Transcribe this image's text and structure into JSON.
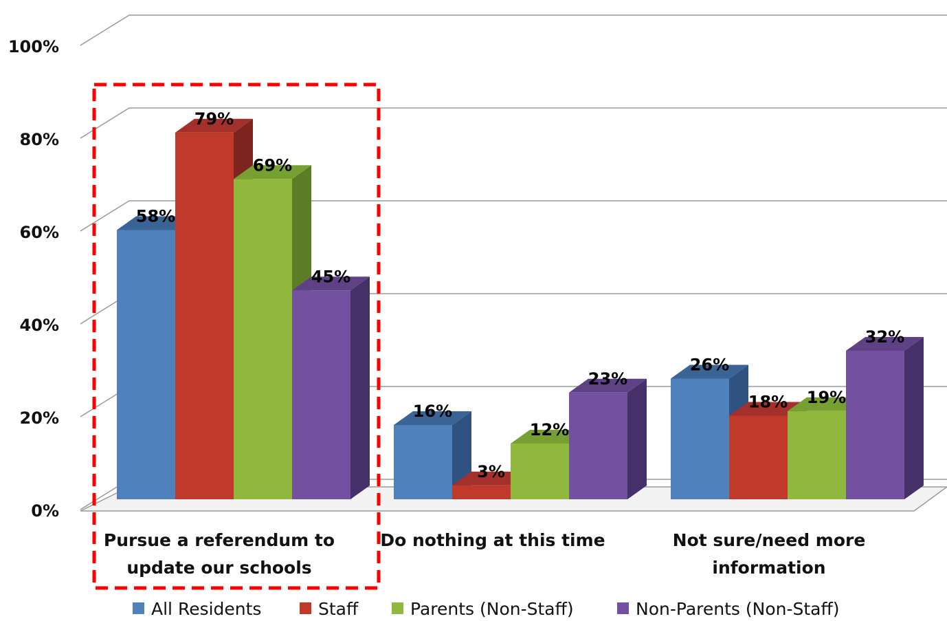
{
  "chart_data": {
    "type": "bar",
    "title": "",
    "xlabel": "",
    "ylabel": "",
    "ylim": [
      0,
      100
    ],
    "yticks": [
      "0%",
      "20%",
      "40%",
      "60%",
      "80%",
      "100%"
    ],
    "grid": true,
    "legend_position": "bottom",
    "categories": [
      [
        "Pursue a referendum to",
        "update our schools"
      ],
      [
        "Do nothing at this time"
      ],
      [
        "Not sure/need more",
        "information"
      ]
    ],
    "highlight": {
      "category_index": 0,
      "style": "dashed",
      "color": "#ff0000"
    },
    "series": [
      {
        "name": "All Residents",
        "values": [
          58,
          16,
          26
        ],
        "labels": [
          "58%",
          "16%",
          "26%"
        ],
        "colors": {
          "front": "#4f81bd",
          "top": "#3a6396",
          "side": "#2f5280"
        }
      },
      {
        "name": "Staff",
        "values": [
          79,
          3,
          18
        ],
        "labels": [
          "79%",
          "3%",
          "18%"
        ],
        "colors": {
          "front": "#c0392b",
          "top": "#a3302a",
          "side": "#7e2420"
        }
      },
      {
        "name": "Parents (Non-Staff)",
        "values": [
          69,
          12,
          19
        ],
        "labels": [
          "69%",
          "12%",
          "19%"
        ],
        "colors": {
          "front": "#8fb83d",
          "top": "#77a033",
          "side": "#5c7d28"
        }
      },
      {
        "name": "Non-Parents (Non-Staff)",
        "values": [
          45,
          23,
          32
        ],
        "labels": [
          "45%",
          "23%",
          "32%"
        ],
        "colors": {
          "front": "#7350a0",
          "top": "#5f4186",
          "side": "#45306a"
        }
      }
    ]
  }
}
